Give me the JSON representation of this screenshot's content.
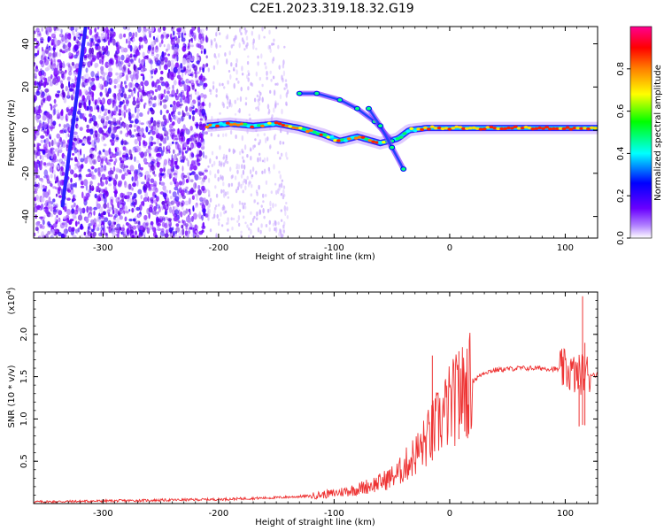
{
  "title": "C2E1.2023.319.18.32.G19",
  "chart_data": [
    {
      "type": "heatmap",
      "description_of_axes": "spectrogram",
      "xlabel": "Height of straight line (km)",
      "ylabel": "Frequency (Hz)",
      "xlim": [
        -360,
        128
      ],
      "ylim": [
        -50,
        48
      ],
      "x_ticks": [
        -300,
        -200,
        -100,
        0,
        100
      ],
      "y_ticks": [
        -40,
        -20,
        0,
        20,
        40
      ],
      "colorbar": {
        "label": "Normalized spectral amplitude",
        "ticks": [
          "0.0",
          "0.2",
          "0.4",
          "0.6",
          "0.8"
        ],
        "range": [
          0,
          1
        ],
        "colormap": [
          "#ffffff",
          "#7a00ff",
          "#0000ff",
          "#00ffff",
          "#00ff00",
          "#ffff00",
          "#ff8000",
          "#ff0000",
          "#ff0090"
        ]
      },
      "main_track": {
        "x": [
          -210,
          -190,
          -170,
          -150,
          -130,
          -110,
          -95,
          -80,
          -60,
          -45,
          -35,
          -20,
          0,
          40,
          80,
          110,
          128
        ],
        "y": [
          2,
          3,
          2,
          3,
          1,
          -2,
          -5,
          -3,
          -6,
          -4,
          0,
          1,
          1,
          1,
          1,
          1,
          1
        ]
      },
      "diagonal_track": {
        "x": [
          -335,
          -315
        ],
        "y": [
          -35,
          48
        ]
      },
      "upper_branch": {
        "x": [
          -130,
          -115,
          -95,
          -80,
          -65,
          -50
        ],
        "y": [
          17,
          17,
          14,
          10,
          4,
          -5
        ]
      },
      "lower_branch": {
        "x": [
          -70,
          -60,
          -50,
          -40
        ],
        "y": [
          10,
          2,
          -8,
          -18
        ]
      }
    },
    {
      "type": "line",
      "xlabel": "Height of straight line (km)",
      "ylabel": "SNR (10 * v/v)",
      "y_multiplier": "(x10^4)",
      "xlim": [
        -360,
        128
      ],
      "ylim": [
        0,
        2.5
      ],
      "x_ticks": [
        -300,
        -200,
        -100,
        0,
        100
      ],
      "y_ticks": [
        0.5,
        1.0,
        1.5,
        2.0
      ],
      "y_tick_labels": [
        "0.5",
        "1.0",
        "1.5",
        "2.0"
      ],
      "color": "#ee3333",
      "envelope": {
        "x": [
          -360,
          -300,
          -250,
          -200,
          -150,
          -120,
          -100,
          -80,
          -60,
          -45,
          -35,
          -25,
          -15,
          -5,
          0,
          10,
          20,
          30,
          40,
          60,
          80,
          100,
          105,
          110,
          115,
          120,
          128
        ],
        "y": [
          0.02,
          0.03,
          0.04,
          0.05,
          0.07,
          0.09,
          0.12,
          0.17,
          0.25,
          0.35,
          0.5,
          0.65,
          0.85,
          1.05,
          1.15,
          1.3,
          1.45,
          1.55,
          1.58,
          1.6,
          1.6,
          1.58,
          1.55,
          1.5,
          1.55,
          1.53,
          1.52
        ]
      },
      "spikes": [
        {
          "x": -15,
          "y": 1.75
        },
        {
          "x": 8,
          "y": 1.8
        },
        {
          "x": 112,
          "y": 1.4
        },
        {
          "x": 115,
          "y": 2.45
        },
        {
          "x": 117,
          "y": 1.9
        }
      ]
    }
  ],
  "labels": {
    "x_top": "Height of straight line (km)",
    "y_top": "Frequency (Hz)",
    "colorbar": "Normalized spectral amplitude",
    "x_bottom": "Height of straight line (km)",
    "y_bottom": "SNR (10 * v/v)",
    "multiplier": "(x10",
    "multiplier_exp": "4",
    "multiplier_close": ")"
  }
}
